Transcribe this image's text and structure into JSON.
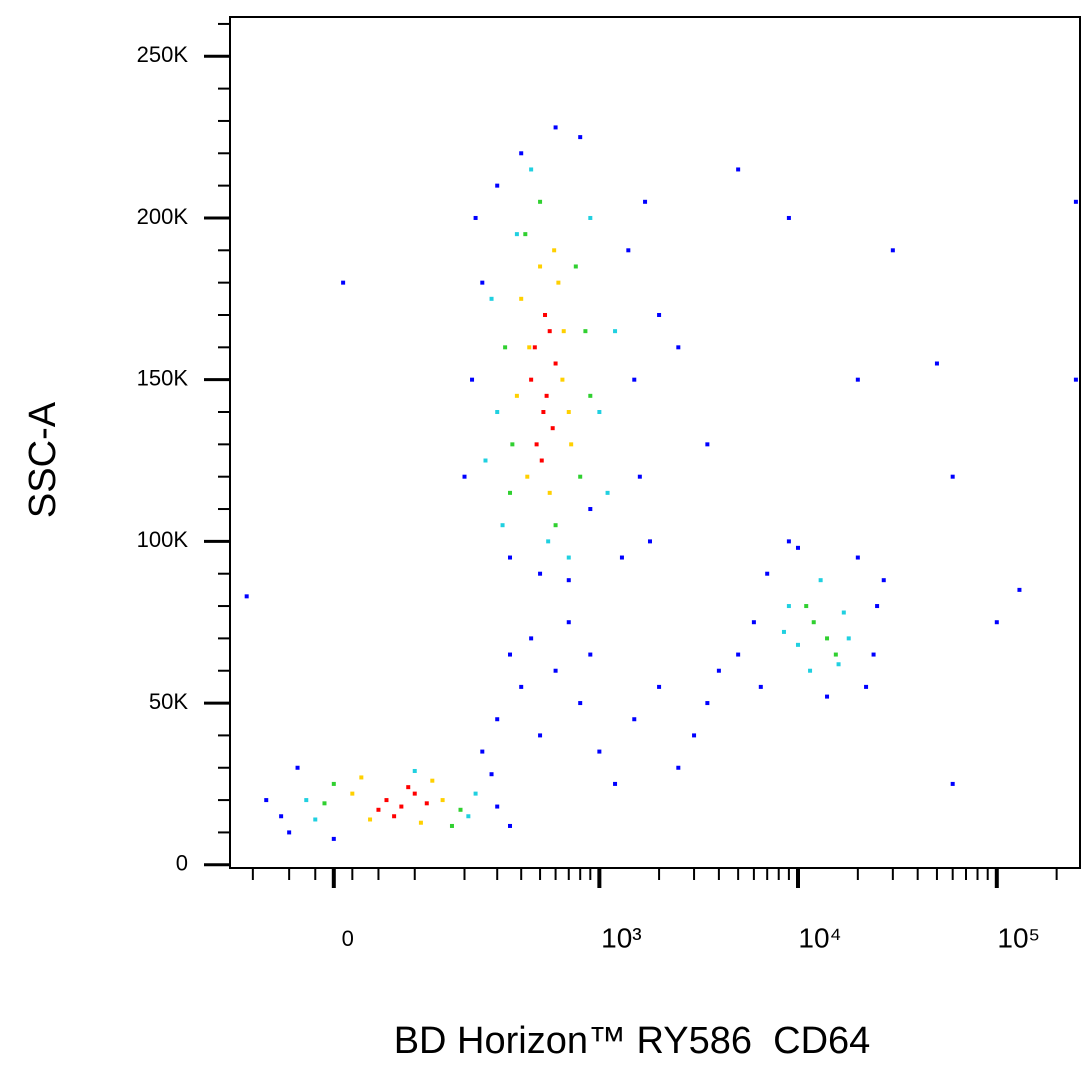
{
  "chart_data": {
    "type": "scatter",
    "x_label": "BD Horizon™ RY586  CD64",
    "y_label": "SSC-A",
    "xscale": "biexponential",
    "xlim": [
      -140,
      262143
    ],
    "ylim": [
      -1000,
      262143
    ],
    "xticks": [
      0,
      {
        "value": 1000,
        "label": "10³"
      },
      {
        "value": 10000,
        "label": "10⁴"
      },
      {
        "value": 100000,
        "label": "10⁵"
      }
    ],
    "xminorticks": [
      -100,
      -50,
      -20,
      20,
      50,
      100,
      200,
      300,
      400,
      500,
      600,
      700,
      800,
      900,
      2000,
      3000,
      4000,
      5000,
      6000,
      7000,
      8000,
      9000,
      20000,
      30000,
      40000,
      50000,
      60000,
      70000,
      80000,
      90000,
      200000
    ],
    "yticks": [
      0,
      {
        "value": 50000,
        "label": "50K"
      },
      {
        "value": 100000,
        "label": "100K"
      },
      {
        "value": 150000,
        "label": "150K"
      },
      {
        "value": 200000,
        "label": "200K"
      },
      {
        "value": 250000,
        "label": "250K"
      }
    ],
    "yminorticks": [
      10000,
      20000,
      30000,
      40000,
      60000,
      70000,
      80000,
      90000,
      110000,
      120000,
      130000,
      140000,
      160000,
      170000,
      180000,
      190000,
      210000,
      220000,
      230000,
      240000,
      260000
    ],
    "series": [
      {
        "color": "#0000ff",
        "x": [
          220,
          1500,
          250,
          1600,
          1400,
          300,
          800,
          600,
          400,
          2000,
          200,
          1800,
          350,
          1300,
          700,
          500,
          2500,
          900,
          230,
          1700,
          -60,
          300,
          -80,
          280,
          -40,
          350,
          250,
          0,
          -50,
          300,
          400,
          500,
          600,
          800,
          1000,
          1500,
          2000,
          3000,
          4000,
          700,
          450,
          1200,
          2500,
          3500,
          350,
          900,
          5000,
          6000,
          25000,
          7000,
          24000,
          10000,
          20000,
          6500,
          14000,
          9000,
          27000,
          22000,
          20000,
          30000,
          50000,
          60000,
          100000,
          130000,
          60000,
          3500,
          5000,
          9000,
          250000,
          250000,
          -110,
          10
        ],
        "y": [
          150000,
          150000,
          180000,
          120000,
          190000,
          210000,
          225000,
          228000,
          220000,
          170000,
          120000,
          100000,
          95000,
          95000,
          88000,
          90000,
          160000,
          110000,
          200000,
          205000,
          15000,
          18000,
          20000,
          28000,
          30000,
          12000,
          35000,
          8000,
          10000,
          45000,
          55000,
          40000,
          60000,
          50000,
          35000,
          45000,
          55000,
          40000,
          60000,
          75000,
          70000,
          25000,
          30000,
          50000,
          65000,
          65000,
          65000,
          75000,
          80000,
          90000,
          65000,
          98000,
          95000,
          55000,
          52000,
          100000,
          88000,
          55000,
          150000,
          190000,
          155000,
          120000,
          75000,
          85000,
          25000,
          130000,
          215000,
          200000,
          205000,
          150000,
          83000,
          180000
        ]
      },
      {
        "color": "#20d0e0",
        "x": [
          300,
          1000,
          280,
          1100,
          450,
          900,
          700,
          320,
          380,
          1200,
          550,
          260,
          -30,
          230,
          -20,
          210,
          100,
          9000,
          17000,
          10000,
          13000,
          16000,
          11500,
          8500,
          18000
        ],
        "y": [
          140000,
          140000,
          175000,
          115000,
          215000,
          200000,
          95000,
          105000,
          195000,
          165000,
          100000,
          125000,
          20000,
          22000,
          14000,
          15000,
          29000,
          80000,
          78000,
          68000,
          88000,
          62000,
          60000,
          72000,
          70000
        ]
      },
      {
        "color": "#30d030",
        "x": [
          330,
          800,
          360,
          850,
          420,
          760,
          600,
          900,
          350,
          500,
          -10,
          190,
          0,
          170,
          12000,
          14000,
          11000,
          15500
        ],
        "y": [
          160000,
          120000,
          130000,
          165000,
          195000,
          185000,
          105000,
          145000,
          115000,
          205000,
          19000,
          17000,
          25000,
          12000,
          75000,
          70000,
          80000,
          65000
        ]
      },
      {
        "color": "#ffd000",
        "x": [
          400,
          650,
          430,
          700,
          620,
          380,
          560,
          660,
          500,
          720,
          440,
          590,
          20,
          150,
          40,
          130,
          110,
          30
        ],
        "y": [
          175000,
          150000,
          120000,
          140000,
          180000,
          145000,
          115000,
          165000,
          185000,
          130000,
          160000,
          190000,
          22000,
          20000,
          14000,
          26000,
          13000,
          27000
        ]
      },
      {
        "color": "#ff0000",
        "x": [
          450,
          520,
          600,
          480,
          560,
          510,
          540,
          470,
          580,
          530,
          60,
          80,
          100,
          70,
          90,
          120,
          50
        ],
        "y": [
          150000,
          140000,
          155000,
          130000,
          165000,
          125000,
          145000,
          160000,
          135000,
          170000,
          20000,
          18000,
          22000,
          15000,
          24000,
          19000,
          17000
        ]
      }
    ]
  }
}
